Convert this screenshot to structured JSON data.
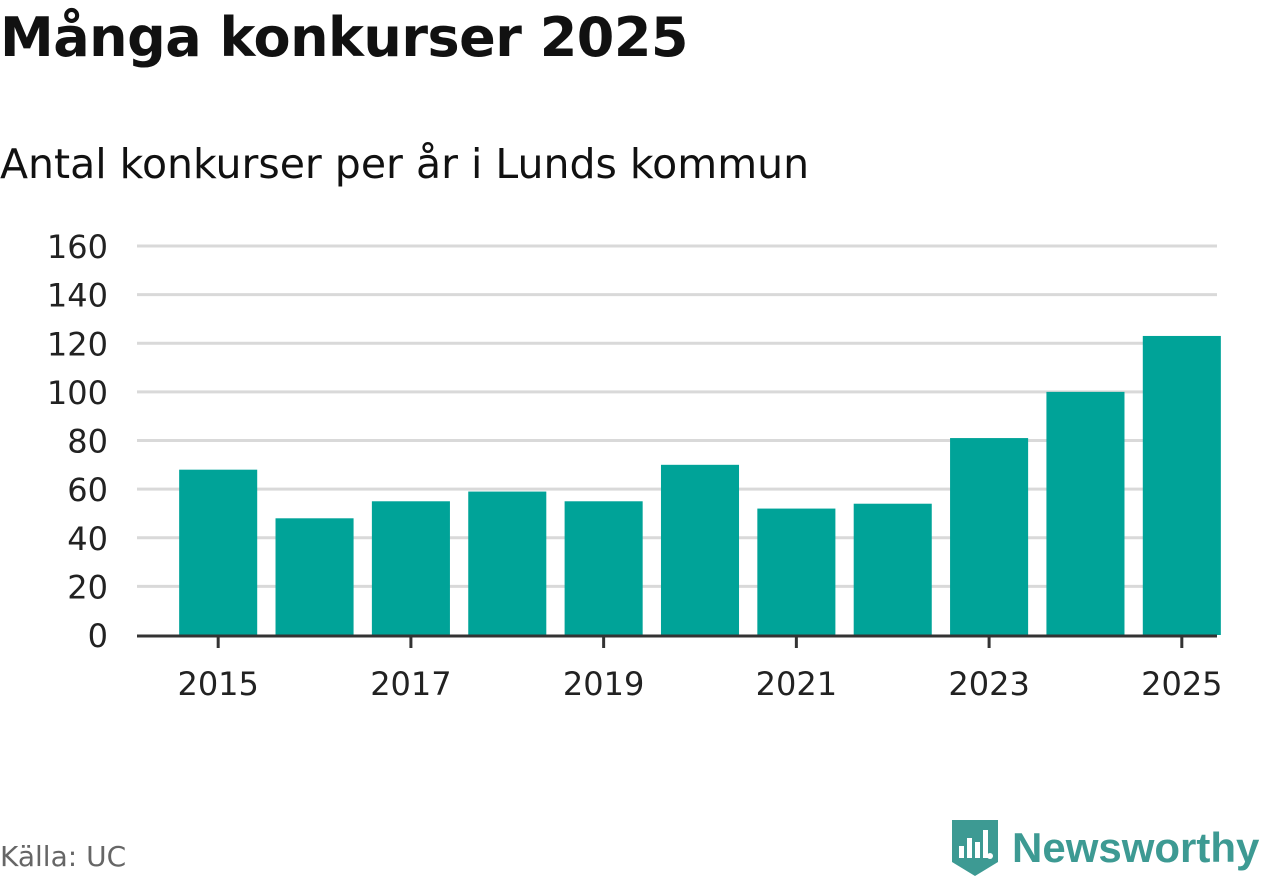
{
  "title": "Många konkurser 2025",
  "subtitle": "Antal konkurser per år i Lunds kommun",
  "source": "Källa: UC",
  "brand": {
    "name": "Newsworthy",
    "icon": "newsworthy-logo-icon"
  },
  "colors": {
    "bar": "#00a398",
    "grid": "#d9d9d9",
    "axis": "#333333",
    "brand": "#3d9a93"
  },
  "chart_data": {
    "type": "bar",
    "title": "Många konkurser 2025",
    "subtitle": "Antal konkurser per år i Lunds kommun",
    "xlabel": "",
    "ylabel": "",
    "categories": [
      "2015",
      "2016",
      "2017",
      "2018",
      "2019",
      "2020",
      "2021",
      "2022",
      "2023",
      "2024",
      "2025"
    ],
    "values": [
      68,
      48,
      55,
      59,
      55,
      70,
      52,
      54,
      81,
      100,
      123
    ],
    "ylim": [
      0,
      160
    ],
    "yticks": [
      0,
      20,
      40,
      60,
      80,
      100,
      120,
      140,
      160
    ],
    "xtick_labels": [
      "2015",
      "2017",
      "2019",
      "2021",
      "2023",
      "2025"
    ],
    "grid": true,
    "legend": "none"
  }
}
